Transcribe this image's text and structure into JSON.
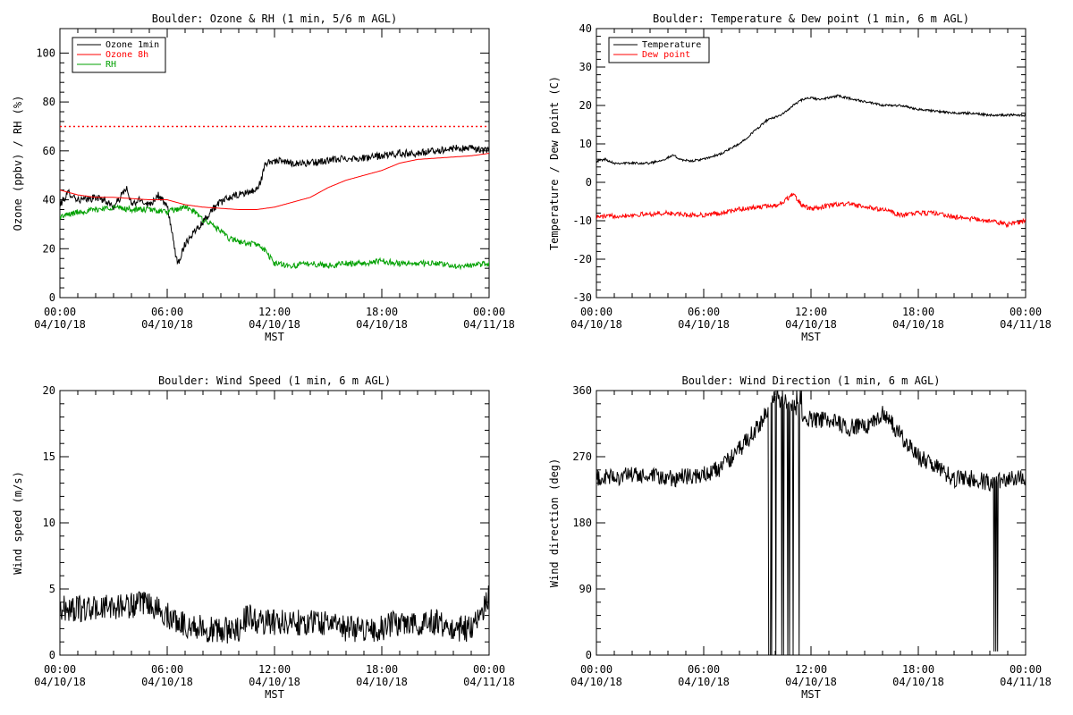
{
  "chart_data": [
    {
      "type": "line",
      "title": "Boulder: Ozone & RH (1 min, 5/6 m AGL)",
      "xlabel": "MST",
      "ylabel": "Ozone (ppbv) / RH (%)",
      "xlim_hours": [
        0,
        24
      ],
      "ylim": [
        0,
        110
      ],
      "yticks": [
        0,
        20,
        40,
        60,
        80,
        100
      ],
      "x_ticks": [
        {
          "h": 0,
          "time": "00:00",
          "date": "04/10/18"
        },
        {
          "h": 6,
          "time": "06:00",
          "date": "04/10/18"
        },
        {
          "h": 12,
          "time": "12:00",
          "date": "04/10/18"
        },
        {
          "h": 18,
          "time": "18:00",
          "date": "04/10/18"
        },
        {
          "h": 24,
          "time": "00:00",
          "date": "04/11/18"
        }
      ],
      "legend_position": "top-left",
      "reference_line": {
        "y": 70,
        "color": "#ff0000",
        "style": "dotted"
      },
      "series": [
        {
          "name": "Ozone 1min",
          "color": "#000000",
          "noise": 1.5,
          "points": [
            [
              0,
              38
            ],
            [
              0.5,
              43
            ],
            [
              1,
              40
            ],
            [
              1.5,
              40
            ],
            [
              2,
              41
            ],
            [
              2.5,
              40
            ],
            [
              3,
              37
            ],
            [
              3.3,
              40
            ],
            [
              3.7,
              45
            ],
            [
              4,
              38
            ],
            [
              4.5,
              40
            ],
            [
              5,
              38
            ],
            [
              5.5,
              42
            ],
            [
              6,
              37
            ],
            [
              6.2,
              30
            ],
            [
              6.4,
              20
            ],
            [
              6.6,
              14
            ],
            [
              7,
              22
            ],
            [
              7.5,
              27
            ],
            [
              8,
              31
            ],
            [
              8.5,
              36
            ],
            [
              9,
              39
            ],
            [
              9.5,
              41
            ],
            [
              10,
              42
            ],
            [
              10.5,
              43
            ],
            [
              11,
              44
            ],
            [
              11.3,
              49
            ],
            [
              11.5,
              55
            ],
            [
              12,
              56
            ],
            [
              13,
              55
            ],
            [
              14,
              55
            ],
            [
              15,
              56
            ],
            [
              16,
              57
            ],
            [
              17,
              57
            ],
            [
              18,
              58
            ],
            [
              19,
              59
            ],
            [
              20,
              59
            ],
            [
              21,
              60
            ],
            [
              22,
              61
            ],
            [
              23,
              61
            ],
            [
              24,
              60
            ]
          ]
        },
        {
          "name": "Ozone 8h",
          "color": "#ff0000",
          "noise": 0,
          "points": [
            [
              0,
              44
            ],
            [
              1,
              42
            ],
            [
              2,
              41
            ],
            [
              3,
              41
            ],
            [
              4,
              40.5
            ],
            [
              5,
              40
            ],
            [
              6,
              40
            ],
            [
              7,
              38
            ],
            [
              8,
              37
            ],
            [
              9,
              36.5
            ],
            [
              10,
              36
            ],
            [
              11,
              36
            ],
            [
              12,
              37
            ],
            [
              13,
              39
            ],
            [
              14,
              41
            ],
            [
              15,
              45
            ],
            [
              16,
              48
            ],
            [
              17,
              50
            ],
            [
              18,
              52
            ],
            [
              19,
              55
            ],
            [
              20,
              56.5
            ],
            [
              21,
              57
            ],
            [
              22,
              57.5
            ],
            [
              23,
              58
            ],
            [
              24,
              59
            ]
          ]
        },
        {
          "name": "RH",
          "color": "#00a000",
          "noise": 1.2,
          "points": [
            [
              0,
              33
            ],
            [
              1,
              35
            ],
            [
              2,
              36
            ],
            [
              3,
              37
            ],
            [
              4,
              36
            ],
            [
              5,
              36
            ],
            [
              6,
              35
            ],
            [
              6.5,
              36
            ],
            [
              7,
              37
            ],
            [
              7.5,
              35
            ],
            [
              8,
              32
            ],
            [
              8.5,
              30
            ],
            [
              9,
              27
            ],
            [
              9.5,
              24
            ],
            [
              10,
              23
            ],
            [
              10.5,
              22
            ],
            [
              11,
              22
            ],
            [
              11.5,
              19
            ],
            [
              12,
              14
            ],
            [
              13,
              13
            ],
            [
              14,
              14
            ],
            [
              15,
              13
            ],
            [
              16,
              14
            ],
            [
              17,
              14
            ],
            [
              18,
              15
            ],
            [
              19,
              14
            ],
            [
              20,
              14
            ],
            [
              21,
              14
            ],
            [
              22,
              13
            ],
            [
              23,
              13
            ],
            [
              24,
              14
            ]
          ]
        }
      ]
    },
    {
      "type": "line",
      "title": "Boulder: Temperature & Dew point (1 min, 6 m AGL)",
      "xlabel": "MST",
      "ylabel": "Temperature / Dew point (C)",
      "xlim_hours": [
        0,
        24
      ],
      "ylim": [
        -30,
        40
      ],
      "yticks": [
        -30,
        -20,
        -10,
        0,
        10,
        20,
        30,
        40
      ],
      "x_ticks": [
        {
          "h": 0,
          "time": "00:00",
          "date": "04/10/18"
        },
        {
          "h": 6,
          "time": "06:00",
          "date": "04/10/18"
        },
        {
          "h": 12,
          "time": "12:00",
          "date": "04/10/18"
        },
        {
          "h": 18,
          "time": "18:00",
          "date": "04/10/18"
        },
        {
          "h": 24,
          "time": "00:00",
          "date": "04/11/18"
        }
      ],
      "legend_position": "top-left",
      "series": [
        {
          "name": "Temperature",
          "color": "#000000",
          "noise": 0.3,
          "points": [
            [
              0,
              5.5
            ],
            [
              0.5,
              6
            ],
            [
              1,
              5
            ],
            [
              2,
              5
            ],
            [
              3,
              5
            ],
            [
              3.8,
              6
            ],
            [
              4.3,
              7
            ],
            [
              4.7,
              6
            ],
            [
              5.2,
              5.5
            ],
            [
              6,
              6
            ],
            [
              7,
              7.5
            ],
            [
              8,
              10
            ],
            [
              8.5,
              12
            ],
            [
              9,
              14
            ],
            [
              9.5,
              16
            ],
            [
              10,
              17
            ],
            [
              10.5,
              18
            ],
            [
              11,
              20
            ],
            [
              11.5,
              21.5
            ],
            [
              12,
              22
            ],
            [
              12.5,
              21.5
            ],
            [
              13,
              22
            ],
            [
              13.5,
              22.5
            ],
            [
              14,
              22
            ],
            [
              15,
              21
            ],
            [
              16,
              20
            ],
            [
              17,
              20
            ],
            [
              18,
              19
            ],
            [
              19,
              18.5
            ],
            [
              20,
              18
            ],
            [
              21,
              18
            ],
            [
              22,
              17.5
            ],
            [
              23,
              17.5
            ],
            [
              24,
              17.5
            ]
          ]
        },
        {
          "name": "Dew point",
          "color": "#ff0000",
          "noise": 0.6,
          "points": [
            [
              0,
              -9
            ],
            [
              2,
              -8.5
            ],
            [
              4,
              -8
            ],
            [
              5,
              -8.5
            ],
            [
              6,
              -8.5
            ],
            [
              7,
              -8
            ],
            [
              8,
              -7
            ],
            [
              9,
              -6.5
            ],
            [
              10,
              -6
            ],
            [
              10.5,
              -5
            ],
            [
              11,
              -3
            ],
            [
              11.5,
              -6
            ],
            [
              12,
              -7
            ],
            [
              13,
              -6
            ],
            [
              14,
              -5.5
            ],
            [
              15,
              -6.5
            ],
            [
              16,
              -7
            ],
            [
              17,
              -8.5
            ],
            [
              18,
              -8
            ],
            [
              19,
              -8
            ],
            [
              20,
              -9
            ],
            [
              21,
              -9.5
            ],
            [
              22,
              -10
            ],
            [
              23,
              -11
            ],
            [
              24,
              -10
            ]
          ]
        }
      ]
    },
    {
      "type": "line",
      "title": "Boulder: Wind Speed (1 min, 6 m AGL)",
      "xlabel": "MST",
      "ylabel": "Wind speed (m/s)",
      "xlim_hours": [
        0,
        24
      ],
      "ylim": [
        0,
        20
      ],
      "yticks": [
        0,
        5,
        10,
        15,
        20
      ],
      "x_ticks": [
        {
          "h": 0,
          "time": "00:00",
          "date": "04/10/18"
        },
        {
          "h": 6,
          "time": "06:00",
          "date": "04/10/18"
        },
        {
          "h": 12,
          "time": "12:00",
          "date": "04/10/18"
        },
        {
          "h": 18,
          "time": "18:00",
          "date": "04/10/18"
        },
        {
          "h": 24,
          "time": "00:00",
          "date": "04/11/18"
        }
      ],
      "series": [
        {
          "color": "#000000",
          "noise": 1.0,
          "points": [
            [
              0,
              3.5
            ],
            [
              2,
              3.5
            ],
            [
              4,
              3.8
            ],
            [
              5,
              3.8
            ],
            [
              6,
              3
            ],
            [
              7,
              2.3
            ],
            [
              8,
              2
            ],
            [
              9,
              1.8
            ],
            [
              10,
              2
            ],
            [
              10.5,
              3
            ],
            [
              11,
              2.5
            ],
            [
              12,
              2.5
            ],
            [
              13,
              2.5
            ],
            [
              14,
              2.5
            ],
            [
              15,
              2.5
            ],
            [
              16,
              2
            ],
            [
              17,
              2
            ],
            [
              18,
              2
            ],
            [
              19,
              2.5
            ],
            [
              20,
              2.5
            ],
            [
              21,
              2.5
            ],
            [
              22,
              2
            ],
            [
              23,
              2
            ],
            [
              23.5,
              3
            ],
            [
              24,
              4.5
            ]
          ]
        }
      ]
    },
    {
      "type": "line",
      "title": "Boulder: Wind Direction (1 min, 6 m AGL)",
      "xlabel": "MST",
      "ylabel": "Wind direction (deg)",
      "xlim_hours": [
        0,
        24
      ],
      "ylim": [
        0,
        360
      ],
      "yticks": [
        0,
        90,
        180,
        270,
        360
      ],
      "x_ticks": [
        {
          "h": 0,
          "time": "00:00",
          "date": "04/10/18"
        },
        {
          "h": 6,
          "time": "06:00",
          "date": "04/10/18"
        },
        {
          "h": 12,
          "time": "12:00",
          "date": "04/10/18"
        },
        {
          "h": 18,
          "time": "18:00",
          "date": "04/10/18"
        },
        {
          "h": 24,
          "time": "00:00",
          "date": "04/11/18"
        }
      ],
      "series": [
        {
          "color": "#000000",
          "noise": 12,
          "wrap": true,
          "points": [
            [
              0,
              240
            ],
            [
              2,
              245
            ],
            [
              4,
              240
            ],
            [
              6,
              245
            ],
            [
              7,
              255
            ],
            [
              8,
              280
            ],
            [
              9,
              310
            ],
            [
              9.5,
              330
            ],
            [
              10,
              350
            ],
            [
              11,
              340
            ],
            [
              12,
              320
            ],
            [
              13,
              320
            ],
            [
              14,
              310
            ],
            [
              15,
              310
            ],
            [
              16,
              330
            ],
            [
              17,
              300
            ],
            [
              18,
              270
            ],
            [
              19,
              255
            ],
            [
              20,
              240
            ],
            [
              21,
              240
            ],
            [
              22,
              235
            ],
            [
              23,
              240
            ],
            [
              24,
              240
            ]
          ]
        }
      ]
    }
  ]
}
